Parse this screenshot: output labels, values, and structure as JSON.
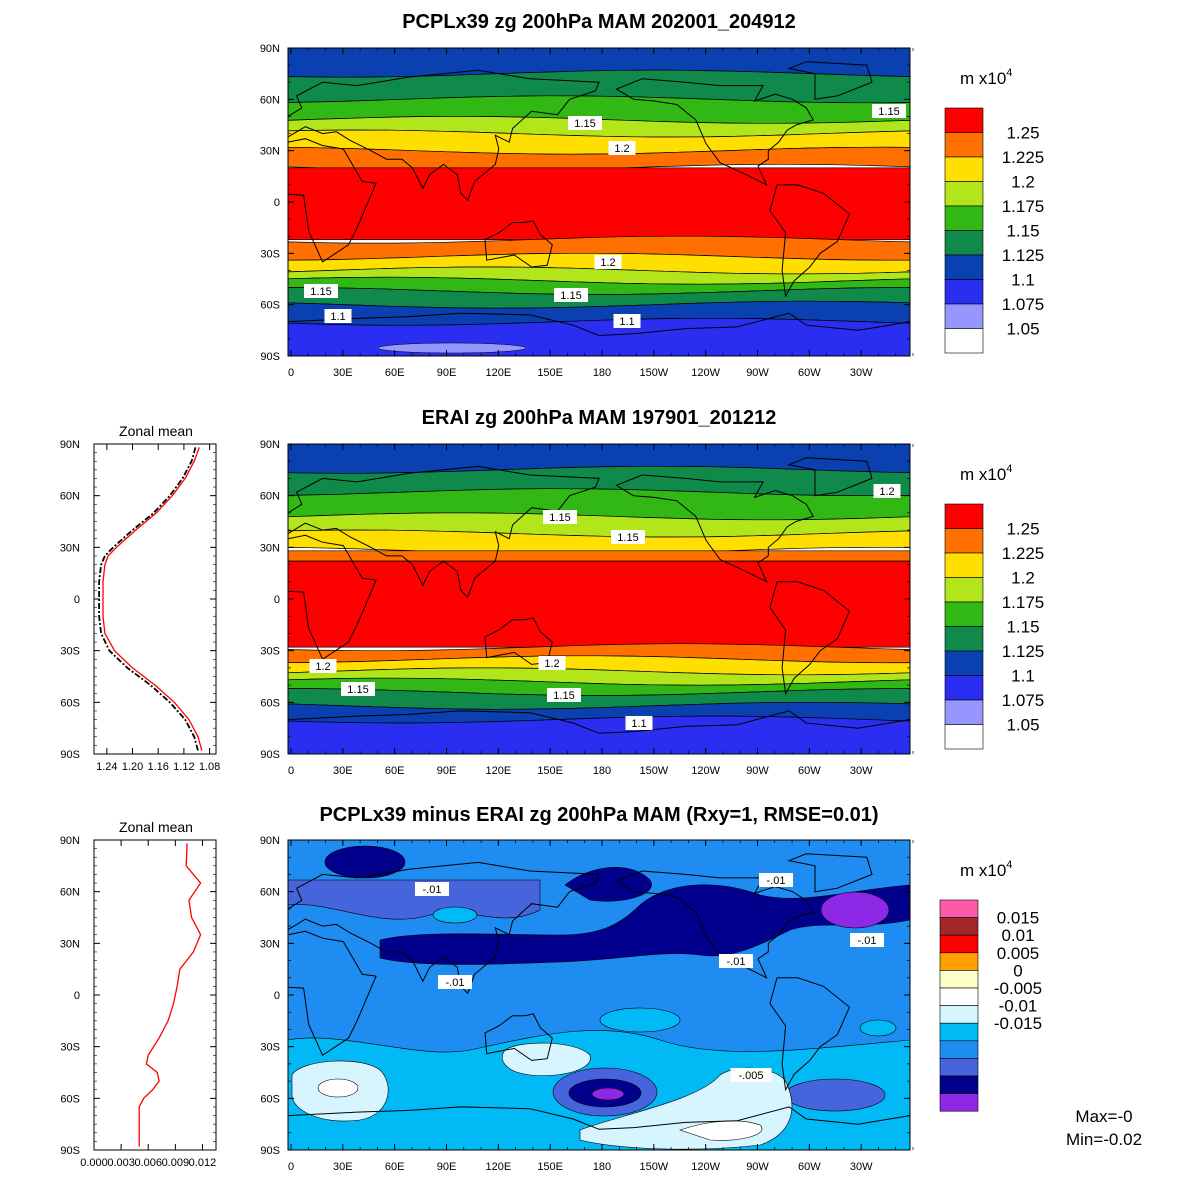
{
  "panels": [
    {
      "title": "PCPLx39 zg 200hPa MAM 202001_204912",
      "units": "m x10",
      "units_exp": "4",
      "colorbar": [
        "1.25",
        "1.225",
        "1.2",
        "1.175",
        "1.15",
        "1.125",
        "1.1",
        "1.075",
        "1.05"
      ],
      "colorbar_colors": [
        "#ff0000",
        "#ff7000",
        "#ffdf00",
        "#b3e61a",
        "#32b814",
        "#0f8a4a",
        "#0a40b0",
        "#2a2ef0",
        "#9696ff",
        "#ffffff"
      ],
      "contour_labels": [
        "1.15",
        "1.2",
        "1.15",
        "1.2",
        "1.15",
        "1.15",
        "1.1",
        "1.1"
      ]
    },
    {
      "title": "ERAI zg 200hPa MAM 197901_201212",
      "units": "m x10",
      "units_exp": "4",
      "colorbar": [
        "1.25",
        "1.225",
        "1.2",
        "1.175",
        "1.15",
        "1.125",
        "1.1",
        "1.075",
        "1.05"
      ],
      "colorbar_colors": [
        "#ff0000",
        "#ff7000",
        "#ffdf00",
        "#b3e61a",
        "#32b814",
        "#0f8a4a",
        "#0a40b0",
        "#2a2ef0",
        "#9696ff",
        "#ffffff"
      ],
      "contour_labels": [
        "1.15",
        "1.15",
        "1.2",
        "1.2",
        "1.2",
        "1.15",
        "1.15",
        "1.1"
      ]
    },
    {
      "title": "PCPLx39 minus ERAI zg 200hPa MAM (Rxy=1, RMSE=0.01)",
      "units": "m x10",
      "units_exp": "4",
      "colorbar": [
        "0.015",
        "0.01",
        "0.005",
        "0",
        "-0.005",
        "-0.01",
        "-0.015"
      ],
      "colorbar_colors": [
        "#ff5aaa",
        "#a02828",
        "#ff0000",
        "#ffa000",
        "#ffffc8",
        "#ffffff",
        "#d7f5ff",
        "#00b9f5",
        "#1e8cf0",
        "#4664dc",
        "#00008c",
        "#8c28e6"
      ],
      "contour_labels": [
        "-.01",
        "-.01",
        "-.01",
        "-.01",
        "-.01",
        "-.005"
      ],
      "stats": {
        "max": "Max=-0",
        "min": "Min=-0.02"
      }
    }
  ],
  "map_axes": {
    "lat_ticks": [
      "90N",
      "60N",
      "30N",
      "0",
      "30S",
      "60S",
      "90S"
    ],
    "lon_ticks": [
      "0",
      "30E",
      "60E",
      "90E",
      "120E",
      "150E",
      "180",
      "150W",
      "120W",
      "90W",
      "60W",
      "30W"
    ]
  },
  "zonal_panels": [
    {
      "title": "Zonal mean",
      "x_ticks": [
        "1.24",
        "1.20",
        "1.16",
        "1.12",
        "1.08"
      ]
    },
    {
      "title": "Zonal mean",
      "x_ticks": [
        "0.000",
        "0.003",
        "0.006",
        "0.009",
        "0.012"
      ]
    }
  ],
  "chart_data": [
    {
      "type": "heatmap",
      "title": "PCPLx39 zg 200hPa MAM 202001_204912",
      "units": "m x10^4",
      "x_range": [
        0,
        360
      ],
      "y_range": [
        -90,
        90
      ],
      "zonal_bands": [
        {
          "lat": [
            75,
            90
          ],
          "value": 1.1
        },
        {
          "lat": [
            60,
            75
          ],
          "value": 1.125
        },
        {
          "lat": [
            48,
            60
          ],
          "value": 1.15
        },
        {
          "lat": [
            40,
            48
          ],
          "value": 1.175
        },
        {
          "lat": [
            30,
            40
          ],
          "value": 1.2
        },
        {
          "lat": [
            20,
            30
          ],
          "value": 1.225
        },
        {
          "lat": [
            -22,
            20
          ],
          "value": 1.25
        },
        {
          "lat": [
            -32,
            -22
          ],
          "value": 1.225
        },
        {
          "lat": [
            -40,
            -32
          ],
          "value": 1.2
        },
        {
          "lat": [
            -46,
            -40
          ],
          "value": 1.175
        },
        {
          "lat": [
            -52,
            -46
          ],
          "value": 1.15
        },
        {
          "lat": [
            -60,
            -52
          ],
          "value": 1.125
        },
        {
          "lat": [
            -70,
            -60
          ],
          "value": 1.1
        },
        {
          "lat": [
            -90,
            -70
          ],
          "value": 1.075
        }
      ]
    },
    {
      "type": "heatmap",
      "title": "ERAI zg 200hPa MAM 197901_201212",
      "units": "m x10^4",
      "x_range": [
        0,
        360
      ],
      "y_range": [
        -90,
        90
      ],
      "zonal_bands": [
        {
          "lat": [
            75,
            90
          ],
          "value": 1.1
        },
        {
          "lat": [
            62,
            75
          ],
          "value": 1.125
        },
        {
          "lat": [
            48,
            62
          ],
          "value": 1.15
        },
        {
          "lat": [
            38,
            48
          ],
          "value": 1.175
        },
        {
          "lat": [
            28,
            38
          ],
          "value": 1.2
        },
        {
          "lat": [
            22,
            28
          ],
          "value": 1.225
        },
        {
          "lat": [
            -28,
            22
          ],
          "value": 1.25
        },
        {
          "lat": [
            -35,
            -28
          ],
          "value": 1.225
        },
        {
          "lat": [
            -42,
            -35
          ],
          "value": 1.2
        },
        {
          "lat": [
            -48,
            -42
          ],
          "value": 1.175
        },
        {
          "lat": [
            -54,
            -48
          ],
          "value": 1.15
        },
        {
          "lat": [
            -62,
            -54
          ],
          "value": 1.125
        },
        {
          "lat": [
            -70,
            -62
          ],
          "value": 1.1
        },
        {
          "lat": [
            -90,
            -70
          ],
          "value": 1.075
        }
      ]
    },
    {
      "type": "line",
      "title": "Zonal mean",
      "x_range": [
        1.26,
        1.07
      ],
      "y_range": [
        -90,
        90
      ],
      "series": [
        {
          "color": "#ff0000",
          "style": "solid",
          "lat": [
            88,
            80,
            70,
            60,
            50,
            40,
            30,
            25,
            20,
            10,
            0,
            -10,
            -20,
            -30,
            -40,
            -50,
            -60,
            -70,
            -80,
            -88
          ],
          "values": [
            1.096,
            1.104,
            1.118,
            1.138,
            1.163,
            1.195,
            1.225,
            1.238,
            1.243,
            1.246,
            1.246,
            1.246,
            1.243,
            1.228,
            1.2,
            1.165,
            1.135,
            1.112,
            1.098,
            1.092
          ]
        },
        {
          "color": "#000000",
          "style": "dashed",
          "lat": [
            88,
            80,
            70,
            60,
            50,
            40,
            30,
            25,
            20,
            10,
            0,
            -10,
            -20,
            -30,
            -40,
            -50,
            -60,
            -70,
            -80,
            -88
          ],
          "values": [
            1.102,
            1.108,
            1.122,
            1.142,
            1.167,
            1.2,
            1.23,
            1.243,
            1.249,
            1.252,
            1.252,
            1.252,
            1.249,
            1.236,
            1.208,
            1.172,
            1.142,
            1.118,
            1.104,
            1.098
          ]
        }
      ]
    },
    {
      "type": "line",
      "title": "Zonal mean",
      "x_range": [
        0.0,
        0.0135
      ],
      "y_range": [
        -90,
        90
      ],
      "series": [
        {
          "color": "#ff0000",
          "style": "solid",
          "lat": [
            88,
            75,
            65,
            55,
            45,
            35,
            25,
            15,
            5,
            -5,
            -15,
            -25,
            -35,
            -40,
            -45,
            -50,
            -55,
            -60,
            -65,
            -70,
            -80,
            -88
          ],
          "values": [
            0.0103,
            0.0102,
            0.0118,
            0.0105,
            0.0108,
            0.0118,
            0.011,
            0.0095,
            0.0092,
            0.0088,
            0.0082,
            0.0072,
            0.006,
            0.0058,
            0.007,
            0.0072,
            0.0065,
            0.0055,
            0.005,
            0.005,
            0.005,
            0.005
          ]
        }
      ]
    },
    {
      "type": "heatmap",
      "title": "PCPLx39 minus ERAI zg 200hPa MAM (Rxy=1, RMSE=0.01)",
      "units": "m x10^4",
      "x_range": [
        0,
        360
      ],
      "y_range": [
        -90,
        90
      ],
      "background_value": -0.01,
      "features": [
        {
          "lon": [
            50,
            75
          ],
          "lat": [
            72,
            85
          ],
          "value": -0.015
        },
        {
          "lon": [
            40,
            275
          ],
          "lat": [
            25,
            40
          ],
          "value": -0.015
        },
        {
          "lon": [
            160,
            360
          ],
          "lat": [
            38,
            62
          ],
          "value": -0.015
        },
        {
          "lon": [
            310,
            350
          ],
          "lat": [
            40,
            55
          ],
          "value": -0.02
        },
        {
          "lon": [
            170,
            205
          ],
          "lat": [
            -62,
            -48
          ],
          "value": -0.02
        },
        {
          "lon": [
            0,
            55
          ],
          "lat": [
            -70,
            -35
          ],
          "value": -0.005
        },
        {
          "lon": [
            110,
            170
          ],
          "lat": [
            -45,
            -30
          ],
          "value": -0.005
        },
        {
          "lon": [
            170,
            285
          ],
          "lat": [
            -85,
            -55
          ],
          "value": -0.005
        }
      ],
      "max": -0.0,
      "min": -0.02
    }
  ]
}
